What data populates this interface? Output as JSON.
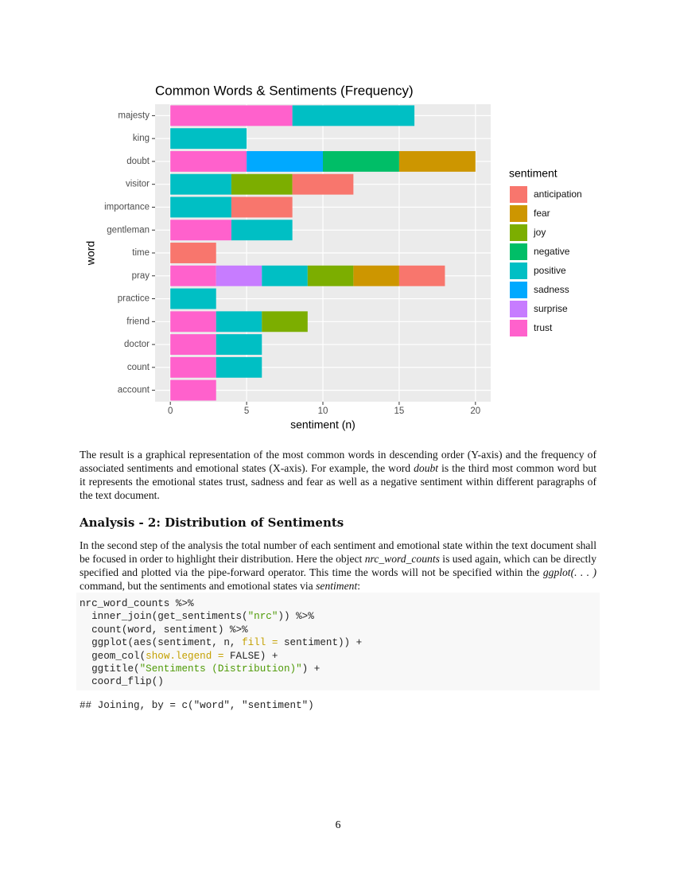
{
  "chart_data": {
    "type": "stacked_barh",
    "title": "Common Words & Sentiments (Frequency)",
    "x_label": "sentiment (n)",
    "y_label": "word",
    "legend_title": "sentiment",
    "categories": [
      "majesty",
      "king",
      "doubt",
      "visitor",
      "importance",
      "gentleman",
      "time",
      "pray",
      "practice",
      "friend",
      "doctor",
      "count",
      "account"
    ],
    "series": [
      {
        "name": "anticipation",
        "color": "#F8766D",
        "values": [
          null,
          null,
          null,
          4,
          4,
          null,
          3,
          3,
          null,
          null,
          null,
          null,
          null
        ]
      },
      {
        "name": "fear",
        "color": "#CD9600",
        "values": [
          null,
          null,
          5,
          null,
          null,
          null,
          null,
          3,
          null,
          null,
          null,
          null,
          null
        ]
      },
      {
        "name": "joy",
        "color": "#7CAE00",
        "values": [
          null,
          null,
          null,
          4,
          null,
          null,
          null,
          3,
          null,
          3,
          null,
          null,
          null
        ]
      },
      {
        "name": "negative",
        "color": "#00BE67",
        "values": [
          null,
          null,
          5,
          null,
          null,
          null,
          null,
          null,
          null,
          null,
          null,
          null,
          null
        ]
      },
      {
        "name": "positive",
        "color": "#00BFC4",
        "values": [
          8,
          5,
          null,
          4,
          4,
          4,
          null,
          3,
          3,
          3,
          3,
          3,
          null
        ]
      },
      {
        "name": "sadness",
        "color": "#00A9FF",
        "values": [
          null,
          null,
          5,
          null,
          null,
          null,
          null,
          null,
          null,
          null,
          null,
          null,
          null
        ]
      },
      {
        "name": "surprise",
        "color": "#C77CFF",
        "values": [
          null,
          null,
          null,
          null,
          null,
          null,
          null,
          3,
          null,
          null,
          null,
          null,
          null
        ]
      },
      {
        "name": "trust",
        "color": "#FF61CC",
        "values": [
          8,
          null,
          5,
          null,
          null,
          4,
          null,
          3,
          null,
          3,
          3,
          3,
          3
        ]
      }
    ],
    "xlim": [
      -1,
      21
    ],
    "xticks": [
      0,
      5,
      10,
      15,
      20
    ],
    "grid": true
  },
  "paragraph1": [
    "The result is a graphical representation of the most common words in descending order (Y-axis) and the frequency of associated sentiments and emotional states (X-axis). For example, the word ",
    "doubt",
    " is the third most common word but it represents the emotional states trust, sadness and fear as well as a negative sentiment within different paragraphs of the text document."
  ],
  "heading": "Analysis - 2: Distribution of Sentiments",
  "paragraph2": [
    "In the second step of the analysis the total number of each sentiment and emotional state within the text document shall be focused in order to highlight their distribution. Here the object ",
    "nrc_word_counts",
    " is used again, which can be directly specified and plotted via the pipe-forward operator. This time the words will not be specified within the ",
    "ggplot(. . . )",
    " command, but the sentiments and emotional states via ",
    "sentiment",
    ":"
  ],
  "code": [
    [
      "nrc_word_counts %>%"
    ],
    [
      "  inner_join(get_sentiments(",
      "\"nrc\"",
      ")) %>%"
    ],
    [
      "  count(word, sentiment) %>%"
    ],
    [
      "  ggplot(aes(sentiment, n, ",
      "fill =",
      " sentiment)) +"
    ],
    [
      "  geom_col(",
      "show.legend =",
      " FALSE) +"
    ],
    [
      "  ggtitle(",
      "\"Sentiments (Distribution)\"",
      ") +"
    ],
    [
      "  coord_flip()"
    ]
  ],
  "output": "## Joining, by = c(\"word\", \"sentiment\")",
  "page_number": "6"
}
